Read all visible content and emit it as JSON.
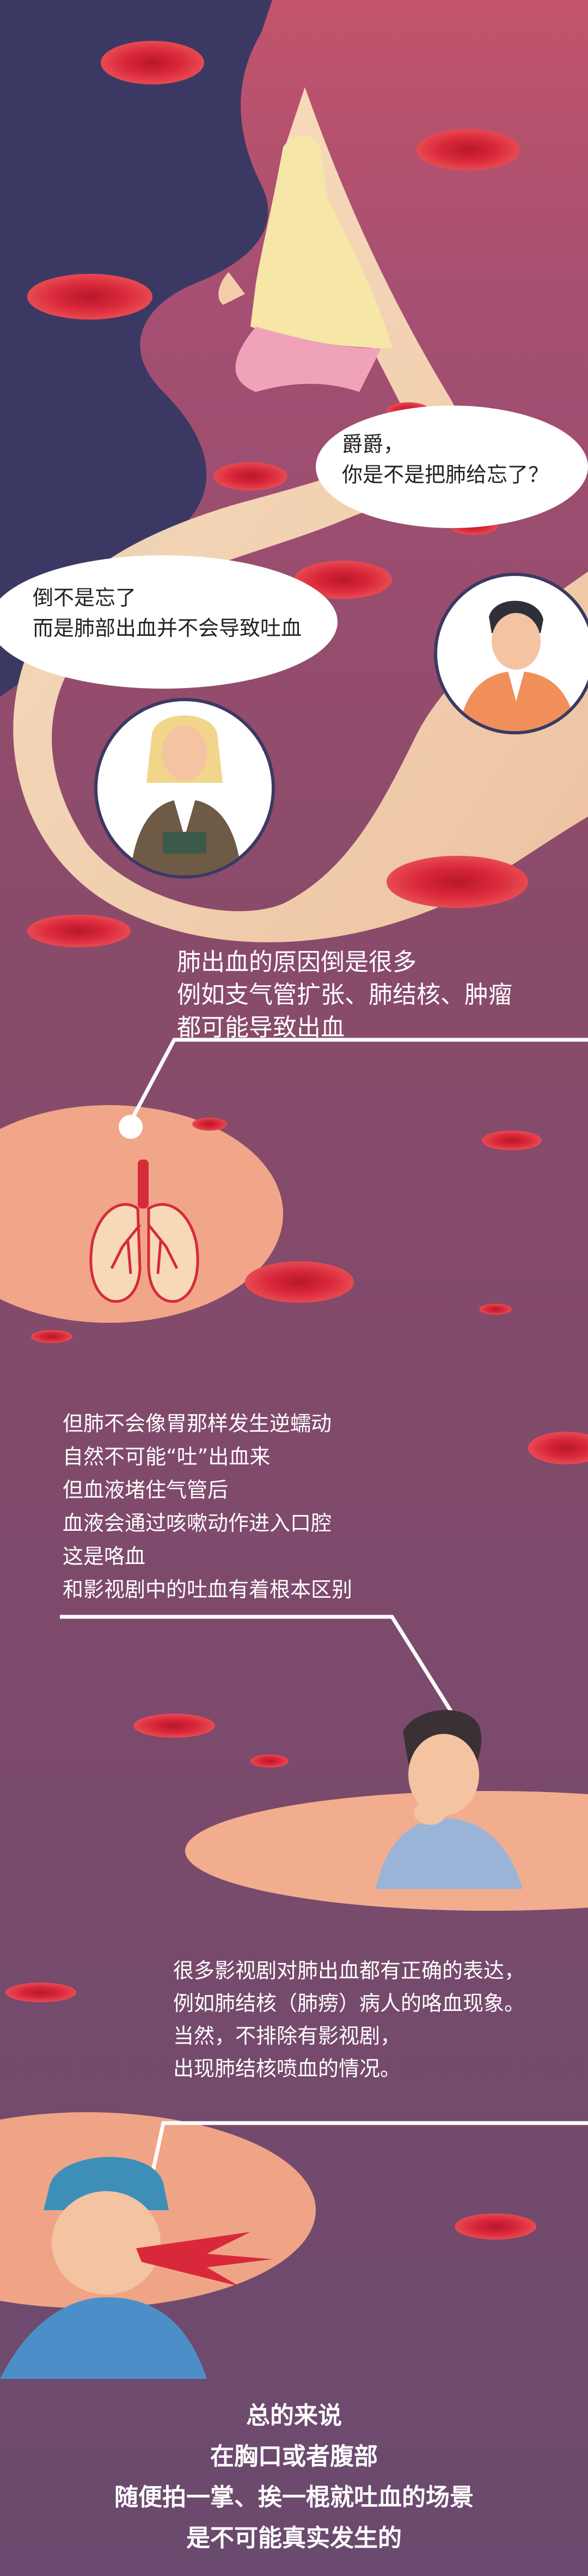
{
  "bubbles": {
    "question": [
      "爵爵，",
      "你是不是把肺给忘了？"
    ],
    "answer": [
      "倒不是忘了",
      "而是肺部出血并不会导致吐血"
    ]
  },
  "sections": {
    "lung_cause": [
      "肺出血的原因倒是很多",
      "例如支气管扩张、肺结核、肿瘤",
      "都可能导致出血"
    ],
    "cough": [
      "但肺不会像胃那样发生逆蠕动",
      "自然不可能“吐”出血来",
      "但血液堵住气管后",
      "血液会通过咳嗽动作进入口腔",
      "这是咯血",
      "和影视剧中的吐血有着根本区别"
    ],
    "drama": [
      "很多影视剧对肺出血都有正确的表达，",
      "例如肺结核（肺痨）病人的咯血现象。",
      "当然，不排除有影视剧，",
      "出现肺结核喷血的情况。"
    ],
    "summary": [
      "总的来说",
      "在胸口或者腹部",
      "随便拍一掌、挨一棍就吐血的场景",
      "是不可能真实发生的"
    ]
  },
  "colors": {
    "bg_top": "#c2546b",
    "bg_mid": "#8a4b6a",
    "bg_bottom": "#6d4a6e",
    "navy": "#3b3963",
    "cream": "#f6ddb6",
    "peach": "#f1a68a",
    "blood": "#d9283a",
    "text": "#ffffff"
  }
}
